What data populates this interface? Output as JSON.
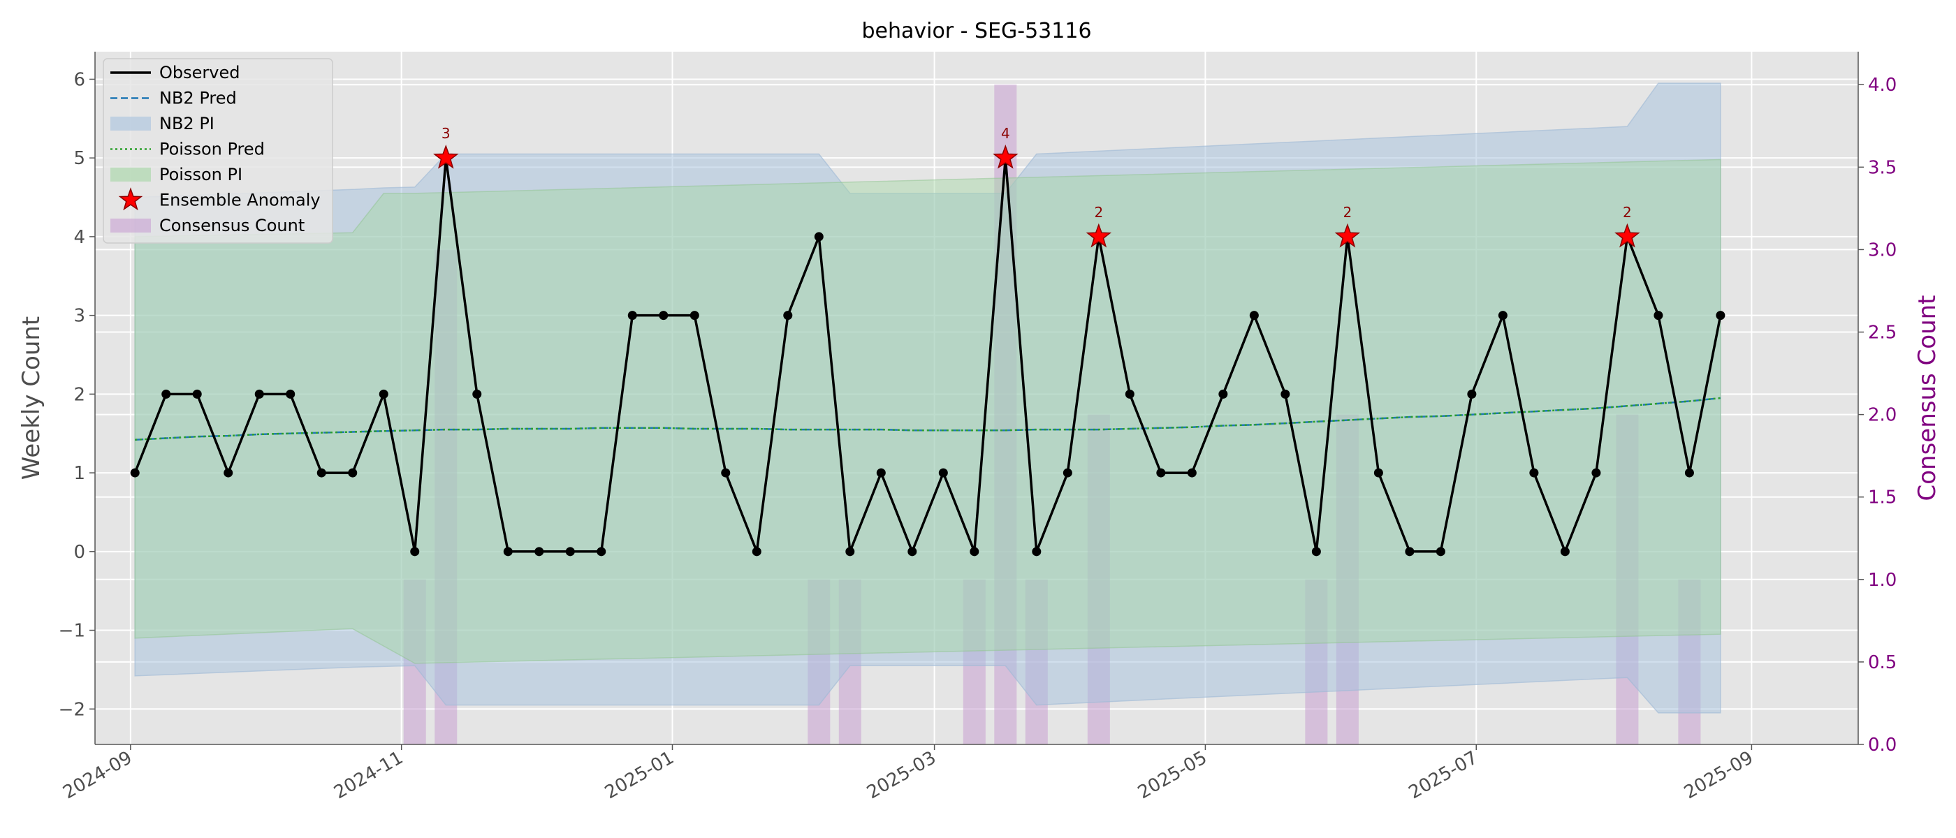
{
  "chart_data": {
    "type": "line",
    "title": "behavior - SEG-53116",
    "ylabel": "Weekly Count",
    "ylabel_right": "Consensus Count",
    "ylim": [
      -2.45,
      6.35
    ],
    "ylim_right": [
      0,
      4.2
    ],
    "xlim": [
      "2024-08-24",
      "2025-09-25"
    ],
    "yticks": [
      -2,
      -1,
      0,
      1,
      2,
      3,
      4,
      5,
      6
    ],
    "ytick_labels": [
      "−2",
      "−1",
      "0",
      "1",
      "2",
      "3",
      "4",
      "5",
      "6"
    ],
    "yticks_right": [
      0.0,
      0.5,
      1.0,
      1.5,
      2.0,
      2.5,
      3.0,
      3.5,
      4.0
    ],
    "ytick_labels_right": [
      "0.0",
      "0.5",
      "1.0",
      "1.5",
      "2.0",
      "2.5",
      "3.0",
      "3.5",
      "4.0"
    ],
    "xticks": [
      "2024-09-01",
      "2024-11-01",
      "2025-01-01",
      "2025-03-01",
      "2025-05-01",
      "2025-07-01",
      "2025-09-01"
    ],
    "xtick_labels": [
      "2024-09",
      "2024-11",
      "2025-01",
      "2025-03",
      "2025-05",
      "2025-07",
      "2025-09"
    ],
    "grid": true,
    "legend_position": "upper-left",
    "legend": [
      "Observed",
      "NB2 Pred",
      "NB2 PI",
      "Poisson Pred",
      "Poisson PI",
      "Ensemble Anomaly",
      "Consensus Count"
    ],
    "colors": {
      "observed": "#000000",
      "nb2_pred": "#1f77b4",
      "nb2_pi": "#a6c1dd",
      "poisson_pred": "#2ca02c",
      "poisson_pi": "#a3d6a3",
      "anomaly": "#ff0000",
      "consensus": "#c8a0d2",
      "plot_bg": "#e5e5e5",
      "right_axis": "#800080"
    },
    "x": [
      "2024-09-02",
      "2024-09-09",
      "2024-09-16",
      "2024-09-23",
      "2024-09-30",
      "2024-10-07",
      "2024-10-14",
      "2024-10-21",
      "2024-10-28",
      "2024-11-04",
      "2024-11-11",
      "2024-11-18",
      "2024-11-25",
      "2024-12-02",
      "2024-12-09",
      "2024-12-16",
      "2024-12-23",
      "2024-12-30",
      "2025-01-06",
      "2025-01-13",
      "2025-01-20",
      "2025-01-27",
      "2025-02-03",
      "2025-02-10",
      "2025-02-17",
      "2025-02-24",
      "2025-03-03",
      "2025-03-10",
      "2025-03-17",
      "2025-03-24",
      "2025-03-31",
      "2025-04-07",
      "2025-04-14",
      "2025-04-21",
      "2025-04-28",
      "2025-05-05",
      "2025-05-12",
      "2025-05-19",
      "2025-05-26",
      "2025-06-02",
      "2025-06-09",
      "2025-06-16",
      "2025-06-23",
      "2025-06-30",
      "2025-07-07",
      "2025-07-14",
      "2025-07-21",
      "2025-07-28",
      "2025-08-04",
      "2025-08-11",
      "2025-08-18",
      "2025-08-25"
    ],
    "series": [
      {
        "name": "Observed",
        "values": [
          1,
          2,
          2,
          1,
          2,
          2,
          1,
          1,
          2,
          0,
          5,
          2,
          0,
          0,
          0,
          0,
          3,
          3,
          3,
          1,
          0,
          3,
          4,
          0,
          1,
          0,
          1,
          0,
          5,
          0,
          1,
          4,
          2,
          1,
          1,
          2,
          3,
          2,
          0,
          4,
          1,
          0,
          0,
          2,
          3,
          1,
          0,
          1,
          4,
          3,
          1,
          3
        ]
      },
      {
        "name": "NB2 Pred",
        "values": [
          1.42,
          1.44,
          1.46,
          1.47,
          1.49,
          1.5,
          1.51,
          1.52,
          1.53,
          1.54,
          1.55,
          1.55,
          1.56,
          1.56,
          1.56,
          1.57,
          1.57,
          1.57,
          1.56,
          1.56,
          1.56,
          1.55,
          1.55,
          1.55,
          1.55,
          1.54,
          1.54,
          1.54,
          1.54,
          1.55,
          1.55,
          1.55,
          1.56,
          1.57,
          1.58,
          1.6,
          1.61,
          1.63,
          1.65,
          1.67,
          1.69,
          1.71,
          1.72,
          1.74,
          1.76,
          1.78,
          1.8,
          1.82,
          1.85,
          1.88,
          1.91,
          1.95
        ]
      },
      {
        "name": "Poisson Pred",
        "values": [
          1.42,
          1.44,
          1.46,
          1.47,
          1.49,
          1.5,
          1.51,
          1.52,
          1.53,
          1.54,
          1.55,
          1.55,
          1.56,
          1.56,
          1.56,
          1.57,
          1.57,
          1.57,
          1.56,
          1.56,
          1.56,
          1.55,
          1.55,
          1.55,
          1.55,
          1.54,
          1.54,
          1.54,
          1.54,
          1.55,
          1.55,
          1.55,
          1.56,
          1.57,
          1.58,
          1.6,
          1.61,
          1.63,
          1.65,
          1.67,
          1.69,
          1.71,
          1.72,
          1.74,
          1.76,
          1.78,
          1.8,
          1.82,
          1.85,
          1.88,
          1.91,
          1.95
        ]
      }
    ],
    "nb2_pi": {
      "x": [
        "2024-09-02",
        "2024-10-21",
        "2024-10-28",
        "2024-11-04",
        "2024-11-11",
        "2025-02-03",
        "2025-02-10",
        "2025-03-17",
        "2025-03-24",
        "2025-08-04",
        "2025-08-11",
        "2025-08-25"
      ],
      "lower": [
        -1.58,
        -1.47,
        -1.46,
        -1.45,
        -1.95,
        -1.95,
        -1.45,
        -1.45,
        -1.95,
        -1.6,
        -2.05,
        -2.05
      ],
      "upper": [
        4.5,
        4.6,
        4.62,
        4.63,
        5.05,
        5.05,
        4.55,
        4.55,
        5.05,
        5.4,
        5.95,
        5.95
      ]
    },
    "poisson_pi": {
      "x": [
        "2024-09-02",
        "2024-10-21",
        "2024-10-28",
        "2024-11-04",
        "2025-08-25"
      ],
      "lower": [
        -1.1,
        -0.98,
        -1.2,
        -1.42,
        -1.05
      ],
      "upper": [
        4.0,
        4.05,
        4.55,
        4.55,
        4.98
      ]
    },
    "anomalies": [
      {
        "x": "2024-11-11",
        "y": 5,
        "label": "3"
      },
      {
        "x": "2025-03-17",
        "y": 5,
        "label": "4"
      },
      {
        "x": "2025-04-07",
        "y": 4,
        "label": "2"
      },
      {
        "x": "2025-06-02",
        "y": 4,
        "label": "2"
      },
      {
        "x": "2025-08-04",
        "y": 4,
        "label": "2"
      }
    ],
    "consensus": [
      {
        "x": "2024-11-04",
        "value": 1
      },
      {
        "x": "2024-11-11",
        "value": 3
      },
      {
        "x": "2025-02-03",
        "value": 1
      },
      {
        "x": "2025-02-10",
        "value": 1
      },
      {
        "x": "2025-03-10",
        "value": 1
      },
      {
        "x": "2025-03-17",
        "value": 4
      },
      {
        "x": "2025-03-24",
        "value": 1
      },
      {
        "x": "2025-04-07",
        "value": 2
      },
      {
        "x": "2025-05-26",
        "value": 1
      },
      {
        "x": "2025-06-02",
        "value": 2
      },
      {
        "x": "2025-08-04",
        "value": 2
      },
      {
        "x": "2025-08-18",
        "value": 1
      }
    ]
  }
}
